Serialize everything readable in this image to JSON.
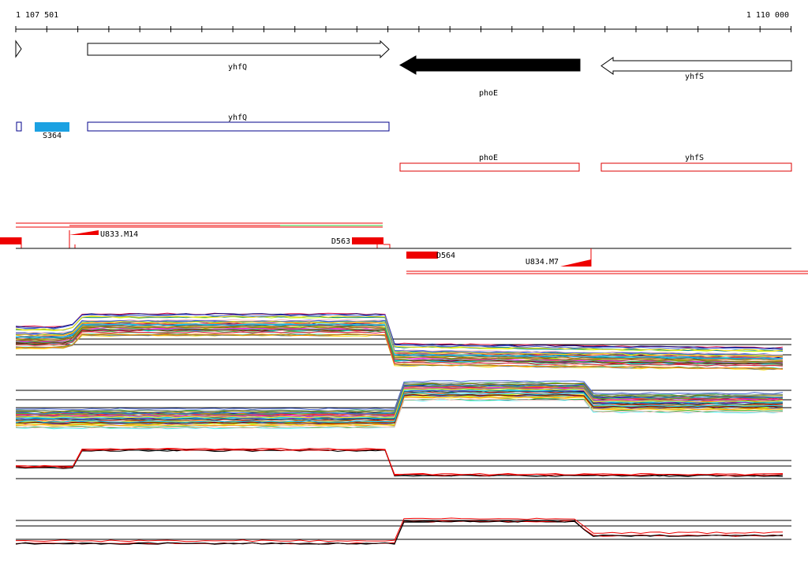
{
  "ruler": {
    "start_label": "1 107 501",
    "end_label": "1 110 000"
  },
  "genes": [
    {
      "label": "yhfQ"
    },
    {
      "label": "phoE"
    },
    {
      "label": "yhfS"
    }
  ],
  "annotations": [
    {
      "label": "yhfQ"
    },
    {
      "label": "S364"
    },
    {
      "label": "phoE"
    },
    {
      "label": "yhfS"
    }
  ],
  "segments": [
    {
      "label": "U833.M14"
    },
    {
      "label": "D563"
    },
    {
      "label": "D564"
    },
    {
      "label": "U834.M7"
    }
  ]
}
